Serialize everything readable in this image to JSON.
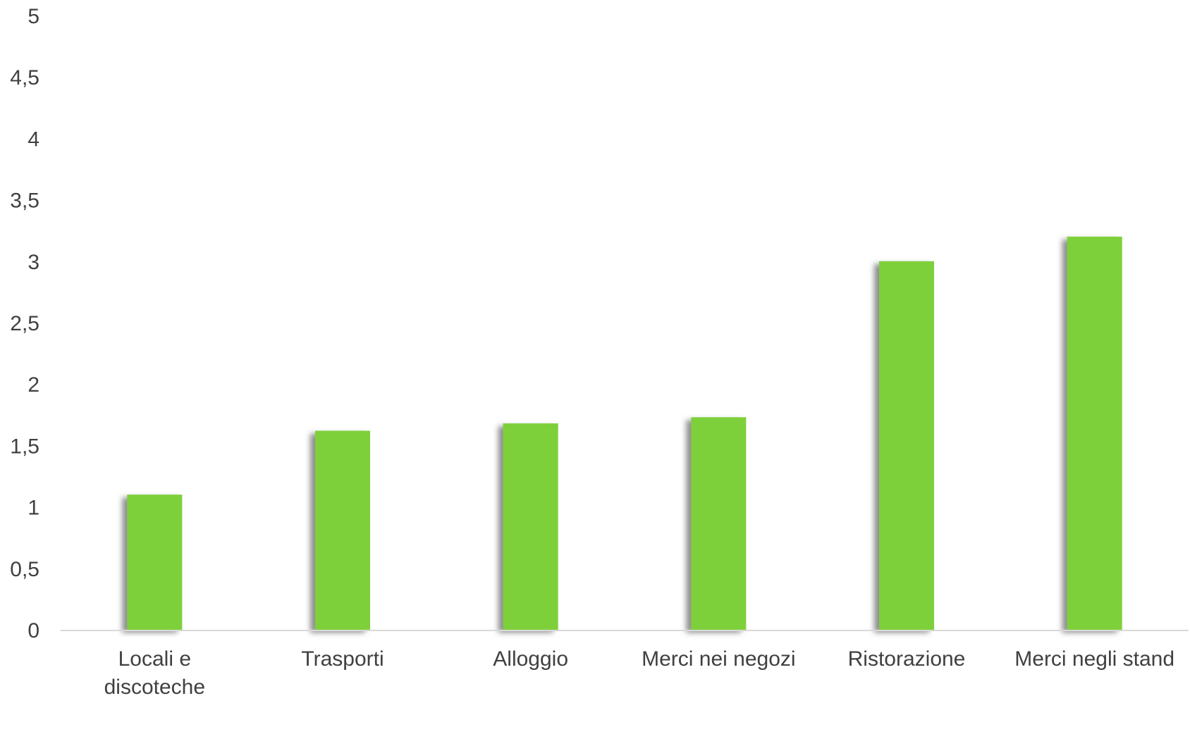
{
  "chart_data": {
    "type": "bar",
    "title": "",
    "xlabel": "",
    "ylabel": "",
    "categories": [
      [
        "Locali e",
        "discoteche"
      ],
      [
        "Trasporti"
      ],
      [
        "Alloggio"
      ],
      [
        "Merci nei negozi"
      ],
      [
        "Ristorazione"
      ],
      [
        "Merci negli stand"
      ]
    ],
    "values": [
      1.1,
      1.62,
      1.68,
      1.73,
      3.0,
      3.2
    ],
    "ylim": [
      0,
      5
    ],
    "yticks": [
      "0",
      "0,5",
      "1",
      "1,5",
      "2",
      "2,5",
      "3",
      "3,5",
      "4",
      "4,5",
      "5"
    ],
    "grid": false,
    "legend": "none",
    "colors": {
      "bar": "#7ed03b",
      "bar_shadow": "#8c8c8c",
      "axis": "#d9d9d9",
      "text": "#404040"
    }
  }
}
